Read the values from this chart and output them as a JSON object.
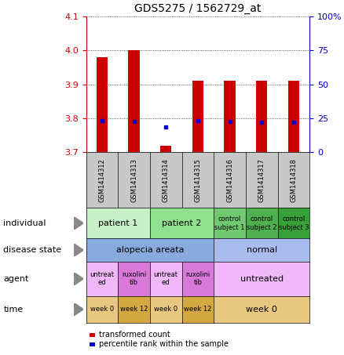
{
  "title": "GDS5275 / 1562729_at",
  "samples": [
    "GSM1414312",
    "GSM1414313",
    "GSM1414314",
    "GSM1414315",
    "GSM1414316",
    "GSM1414317",
    "GSM1414318"
  ],
  "red_values": [
    3.98,
    4.0,
    3.72,
    3.91,
    3.91,
    3.91,
    3.91
  ],
  "blue_values": [
    3.793,
    3.791,
    3.775,
    3.793,
    3.791,
    3.789,
    3.789
  ],
  "ylim_left": [
    3.7,
    4.1
  ],
  "ylim_right": [
    0,
    100
  ],
  "yticks_left": [
    3.7,
    3.8,
    3.9,
    4.0,
    4.1
  ],
  "yticks_right": [
    0,
    25,
    50,
    75,
    100
  ],
  "ytick_labels_right": [
    "0",
    "25",
    "50",
    "75",
    "100%"
  ],
  "bar_color": "#cc0000",
  "dot_color": "#0000cc",
  "label_color_left": "#cc0000",
  "label_color_right": "#0000cc",
  "sample_bg_color": "#c8c8c8",
  "individual_spans": [
    {
      "cols": [
        0,
        1
      ],
      "label": "patient 1",
      "color": "#c8f0c8"
    },
    {
      "cols": [
        2,
        3
      ],
      "label": "patient 2",
      "color": "#90e090"
    },
    {
      "cols": [
        4
      ],
      "label": "control\nsubject 1",
      "color": "#70c870"
    },
    {
      "cols": [
        5
      ],
      "label": "control\nsubject 2",
      "color": "#50b050"
    },
    {
      "cols": [
        6
      ],
      "label": "control\nsubject 3",
      "color": "#38a038"
    }
  ],
  "disease_spans": [
    {
      "cols": [
        0,
        1,
        2,
        3
      ],
      "label": "alopecia areata",
      "color": "#88aadd"
    },
    {
      "cols": [
        4,
        5,
        6
      ],
      "label": "normal",
      "color": "#aabcee"
    }
  ],
  "agent_spans": [
    {
      "cols": [
        0
      ],
      "label": "untreat\ned",
      "color": "#f0b8f8"
    },
    {
      "cols": [
        1
      ],
      "label": "ruxolini\ntib",
      "color": "#d878d8"
    },
    {
      "cols": [
        2
      ],
      "label": "untreat\ned",
      "color": "#f0b8f8"
    },
    {
      "cols": [
        3
      ],
      "label": "ruxolini\ntib",
      "color": "#d878d8"
    },
    {
      "cols": [
        4,
        5,
        6
      ],
      "label": "untreated",
      "color": "#f0b8f8"
    }
  ],
  "time_spans": [
    {
      "cols": [
        0
      ],
      "label": "week 0",
      "color": "#e8c880"
    },
    {
      "cols": [
        1
      ],
      "label": "week 12",
      "color": "#d4a840"
    },
    {
      "cols": [
        2
      ],
      "label": "week 0",
      "color": "#e8c880"
    },
    {
      "cols": [
        3
      ],
      "label": "week 12",
      "color": "#d4a840"
    },
    {
      "cols": [
        4,
        5,
        6
      ],
      "label": "week 0",
      "color": "#e8c880"
    }
  ],
  "row_labels": [
    "individual",
    "disease state",
    "agent",
    "time"
  ],
  "legend_items": [
    {
      "color": "#cc0000",
      "label": "transformed count"
    },
    {
      "color": "#0000cc",
      "label": "percentile rank within the sample"
    }
  ]
}
